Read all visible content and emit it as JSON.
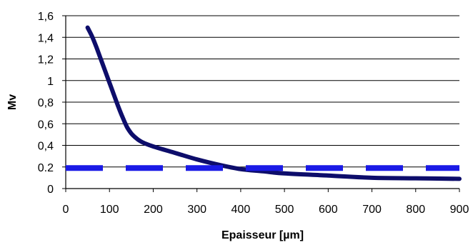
{
  "chart_data": {
    "type": "line",
    "title": "",
    "xlabel": "Epaisseur [µm]",
    "ylabel": "Mv",
    "xlim": [
      0,
      900
    ],
    "ylim": [
      0,
      1.6
    ],
    "x_ticks": [
      "0",
      "100",
      "200",
      "300",
      "400",
      "500",
      "600",
      "700",
      "800",
      "900"
    ],
    "x_tick_values": [
      0,
      100,
      200,
      300,
      400,
      500,
      600,
      700,
      800,
      900
    ],
    "y_ticks": [
      "0",
      "0.2",
      "0,4",
      "0,6",
      "0,8",
      "1",
      "1,2",
      "1,4",
      "1,6"
    ],
    "y_tick_values": [
      0,
      0.2,
      0.4,
      0.6,
      0.8,
      1.0,
      1.2,
      1.4,
      1.6
    ],
    "grid": "horizontal",
    "legend": "none",
    "series": [
      {
        "style": "solid",
        "color": "#0d0d6b",
        "x": [
          50,
          60,
          70,
          80,
          90,
          100,
          110,
          120,
          130,
          140,
          150,
          160,
          170,
          180,
          200,
          250,
          300,
          350,
          400,
          450,
          500,
          600,
          700,
          800,
          900
        ],
        "y": [
          1.49,
          1.41,
          1.31,
          1.2,
          1.09,
          0.98,
          0.87,
          0.76,
          0.66,
          0.57,
          0.51,
          0.47,
          0.44,
          0.42,
          0.39,
          0.33,
          0.27,
          0.22,
          0.18,
          0.16,
          0.14,
          0.12,
          0.1,
          0.095,
          0.09
        ]
      },
      {
        "style": "dashed",
        "color": "#1a1ae6",
        "x": [
          0,
          900
        ],
        "y": [
          0.19,
          0.19
        ]
      }
    ]
  }
}
